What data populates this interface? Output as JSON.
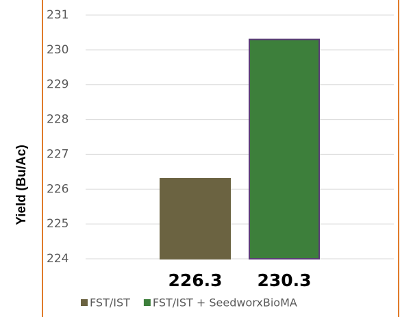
{
  "chart_data": {
    "type": "bar",
    "y_label": "Yield (Bu/Ac)",
    "categories": [
      null
    ],
    "series": [
      {
        "name": "FST/IST",
        "color": "#6b6341",
        "edgecolor": "#6b6341",
        "values": [
          226.3
        ]
      },
      {
        "name": "FST/IST + SeedworxBioMA",
        "color": "#3d7f3b",
        "edgecolor": "#5b3b78",
        "values": [
          230.3
        ]
      }
    ],
    "ylim": [
      224,
      231
    ],
    "yticks": [
      224,
      225,
      226,
      227,
      228,
      229,
      230,
      231
    ],
    "grid": true,
    "legend": "bottom"
  }
}
